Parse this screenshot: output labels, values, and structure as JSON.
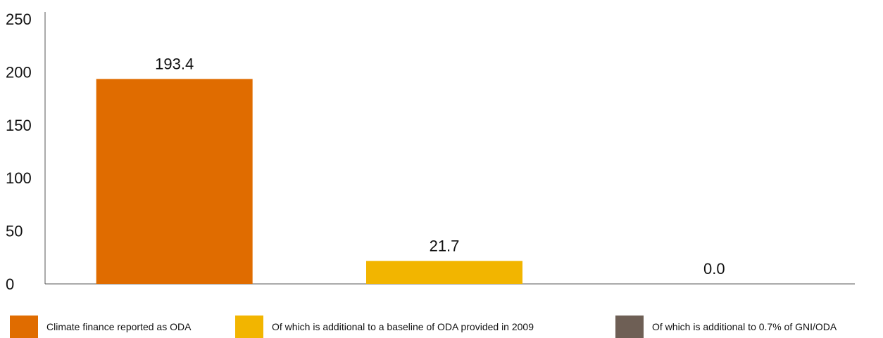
{
  "chart_data": {
    "type": "bar",
    "categories": [
      "Climate finance reported as ODA",
      "Of which is additional to a baseline of ODA provided in 2009",
      "Of which is additional to 0.7% of GNI/ODA"
    ],
    "values": [
      193.4,
      21.7,
      0.0
    ],
    "value_labels": [
      "193.4",
      "21.7",
      "0.0"
    ],
    "ylim": [
      0,
      250
    ],
    "yticks": [
      "0",
      "50",
      "100",
      "150",
      "200",
      "250"
    ],
    "title": "",
    "xlabel": "",
    "ylabel": "",
    "grid": false,
    "legend_position": "bottom"
  },
  "colors": [
    "#E06C00",
    "#F2B500",
    "#6E5F55"
  ],
  "legend": {
    "items": [
      {
        "label": "Climate finance reported as ODA"
      },
      {
        "label": "Of which is additional to a baseline of ODA provided in 2009"
      },
      {
        "label": "Of which is additional to 0.7% of GNI/ODA"
      }
    ]
  }
}
